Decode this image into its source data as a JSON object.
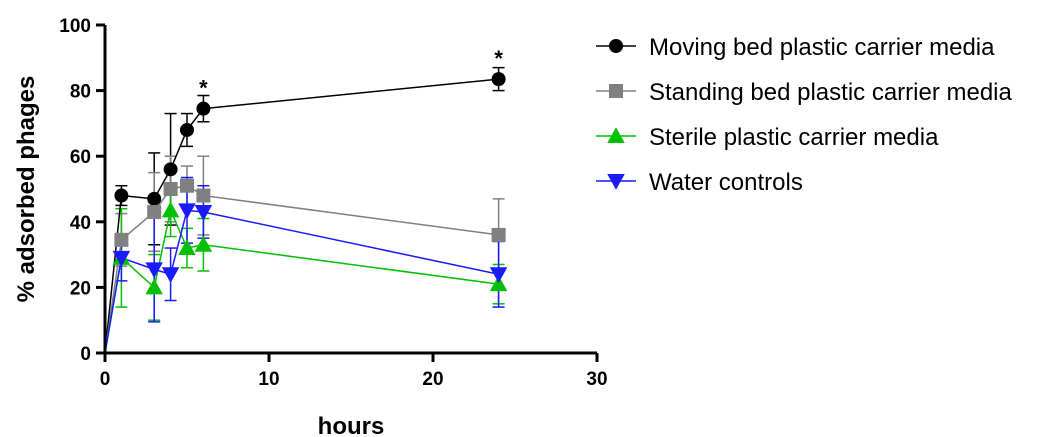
{
  "chart_data": {
    "type": "line",
    "xlabel": "hours",
    "ylabel": "% adsorbed phages",
    "xlim": [
      0,
      30
    ],
    "ylim": [
      0,
      100
    ],
    "xticks": [
      "0",
      "10",
      "20",
      "30"
    ],
    "yticks": [
      "0",
      "20",
      "40",
      "60",
      "80",
      "100"
    ],
    "grid": false,
    "legend_position": "right",
    "series": [
      {
        "name": "Moving bed plastic carrier media",
        "color": "#000000",
        "marker": "circle",
        "x": [
          0,
          1,
          3,
          4,
          5,
          6,
          24
        ],
        "y": [
          0,
          48,
          47,
          56,
          68,
          74.5,
          83.5
        ],
        "err": [
          0,
          3,
          14,
          17,
          5,
          4,
          3.5
        ]
      },
      {
        "name": "Standing bed plastic carrier media",
        "color": "#808080",
        "marker": "square",
        "x": [
          0,
          1,
          3,
          4,
          5,
          6,
          24
        ],
        "y": [
          0,
          34.5,
          43,
          50,
          51,
          48,
          36
        ],
        "err": [
          0,
          8,
          12,
          10,
          6,
          12,
          11
        ]
      },
      {
        "name": "Sterile plastic carrier media",
        "color": "#00c000",
        "marker": "triangle-up",
        "x": [
          0,
          1,
          3,
          4,
          5,
          6,
          24
        ],
        "y": [
          0,
          29,
          20,
          43.5,
          32,
          33,
          21
        ],
        "err": [
          0,
          15,
          10,
          8,
          6,
          8,
          6
        ]
      },
      {
        "name": "Water controls",
        "color": "#1a1aff",
        "marker": "triangle-down",
        "x": [
          0,
          1,
          3,
          4,
          5,
          6,
          24
        ],
        "y": [
          0,
          29,
          25.5,
          24,
          43.5,
          43,
          24
        ],
        "err": [
          0,
          7,
          16,
          8,
          10,
          8,
          10
        ]
      }
    ],
    "annotations": [
      {
        "text": "*",
        "x": 6,
        "y": 81
      },
      {
        "text": "*",
        "x": 24,
        "y": 90
      }
    ]
  }
}
